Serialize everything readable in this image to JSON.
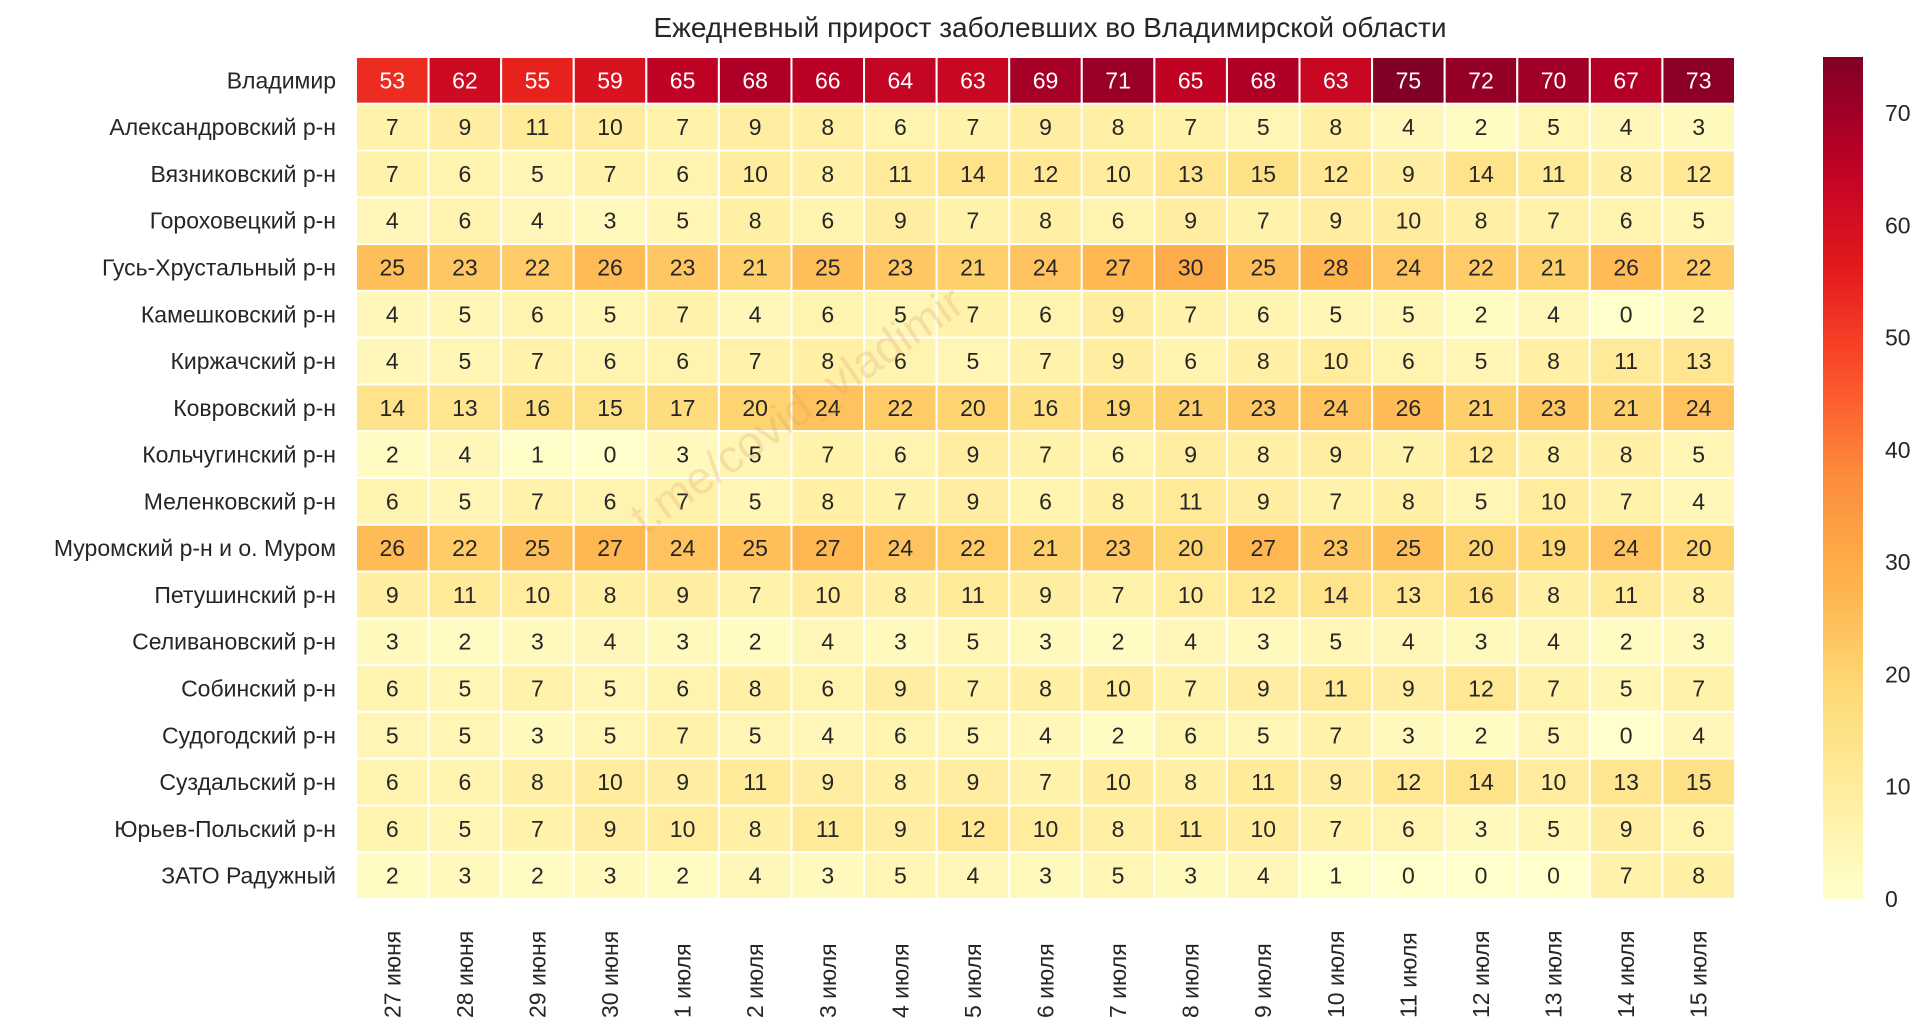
{
  "chart_data": {
    "type": "heatmap",
    "title": "Ежедневный прирост заболевших во Владимирской области",
    "xlabel": "",
    "ylabel": "",
    "colormap": "YlOrRd",
    "color_range": [
      0,
      75
    ],
    "colorbar_ticks": [
      0,
      10,
      20,
      30,
      40,
      50,
      60,
      70
    ],
    "x": [
      "27 июня",
      "28 июня",
      "29 июня",
      "30 июня",
      "1 июля",
      "2 июля",
      "3 июля",
      "4 июля",
      "5 июля",
      "6 июля",
      "7 июля",
      "8 июля",
      "9 июля",
      "10 июля",
      "11 июля",
      "12 июля",
      "13 июля",
      "14 июля",
      "15 июля"
    ],
    "y": [
      "Владимир",
      "Александровский р-н",
      "Вязниковский р-н",
      "Гороховецкий р-н",
      "Гусь-Хрустальный р-н",
      "Камешковский р-н",
      "Киржачский р-н",
      "Ковровский р-н",
      "Кольчугинский р-н",
      "Меленковский р-н",
      "Муромский р-н и о. Муром",
      "Петушинский р-н",
      "Селивановский р-н",
      "Собинский р-н",
      "Судогодский р-н",
      "Суздальский р-н",
      "Юрьев-Польский р-н",
      "ЗАТО Радужный"
    ],
    "values": [
      [
        53,
        62,
        55,
        59,
        65,
        68,
        66,
        64,
        63,
        69,
        71,
        65,
        68,
        63,
        75,
        72,
        70,
        67,
        73
      ],
      [
        7,
        9,
        11,
        10,
        7,
        9,
        8,
        6,
        7,
        9,
        8,
        7,
        5,
        8,
        4,
        2,
        5,
        4,
        3
      ],
      [
        7,
        6,
        5,
        7,
        6,
        10,
        8,
        11,
        14,
        12,
        10,
        13,
        15,
        12,
        9,
        14,
        11,
        8,
        12
      ],
      [
        4,
        6,
        4,
        3,
        5,
        8,
        6,
        9,
        7,
        8,
        6,
        9,
        7,
        9,
        10,
        8,
        7,
        6,
        5
      ],
      [
        25,
        23,
        22,
        26,
        23,
        21,
        25,
        23,
        21,
        24,
        27,
        30,
        25,
        28,
        24,
        22,
        21,
        26,
        22
      ],
      [
        4,
        5,
        6,
        5,
        7,
        4,
        6,
        5,
        7,
        6,
        9,
        7,
        6,
        5,
        5,
        2,
        4,
        0,
        2
      ],
      [
        4,
        5,
        7,
        6,
        6,
        7,
        8,
        6,
        5,
        7,
        9,
        6,
        8,
        10,
        6,
        5,
        8,
        11,
        13
      ],
      [
        14,
        13,
        16,
        15,
        17,
        20,
        24,
        22,
        20,
        16,
        19,
        21,
        23,
        24,
        26,
        21,
        23,
        21,
        24
      ],
      [
        2,
        4,
        1,
        0,
        3,
        5,
        7,
        6,
        9,
        7,
        6,
        9,
        8,
        9,
        7,
        12,
        8,
        8,
        5
      ],
      [
        6,
        5,
        7,
        6,
        7,
        5,
        8,
        7,
        9,
        6,
        8,
        11,
        9,
        7,
        8,
        5,
        10,
        7,
        4
      ],
      [
        26,
        22,
        25,
        27,
        24,
        25,
        27,
        24,
        22,
        21,
        23,
        20,
        27,
        23,
        25,
        20,
        19,
        24,
        20
      ],
      [
        9,
        11,
        10,
        8,
        9,
        7,
        10,
        8,
        11,
        9,
        7,
        10,
        12,
        14,
        13,
        16,
        8,
        11,
        8
      ],
      [
        3,
        2,
        3,
        4,
        3,
        2,
        4,
        3,
        5,
        3,
        2,
        4,
        3,
        5,
        4,
        3,
        4,
        2,
        3
      ],
      [
        6,
        5,
        7,
        5,
        6,
        8,
        6,
        9,
        7,
        8,
        10,
        7,
        9,
        11,
        9,
        12,
        7,
        5,
        7
      ],
      [
        5,
        5,
        3,
        5,
        7,
        5,
        4,
        6,
        5,
        4,
        2,
        6,
        5,
        7,
        3,
        2,
        5,
        0,
        4
      ],
      [
        6,
        6,
        8,
        10,
        9,
        11,
        9,
        8,
        9,
        7,
        10,
        8,
        11,
        9,
        12,
        14,
        10,
        13,
        15
      ],
      [
        6,
        5,
        7,
        9,
        10,
        8,
        11,
        9,
        12,
        10,
        8,
        11,
        10,
        7,
        6,
        3,
        5,
        9,
        6
      ],
      [
        2,
        3,
        2,
        3,
        2,
        4,
        3,
        5,
        4,
        3,
        5,
        3,
        4,
        1,
        0,
        0,
        0,
        7,
        8
      ]
    ]
  },
  "watermark": "t.me/covid_vladimir"
}
